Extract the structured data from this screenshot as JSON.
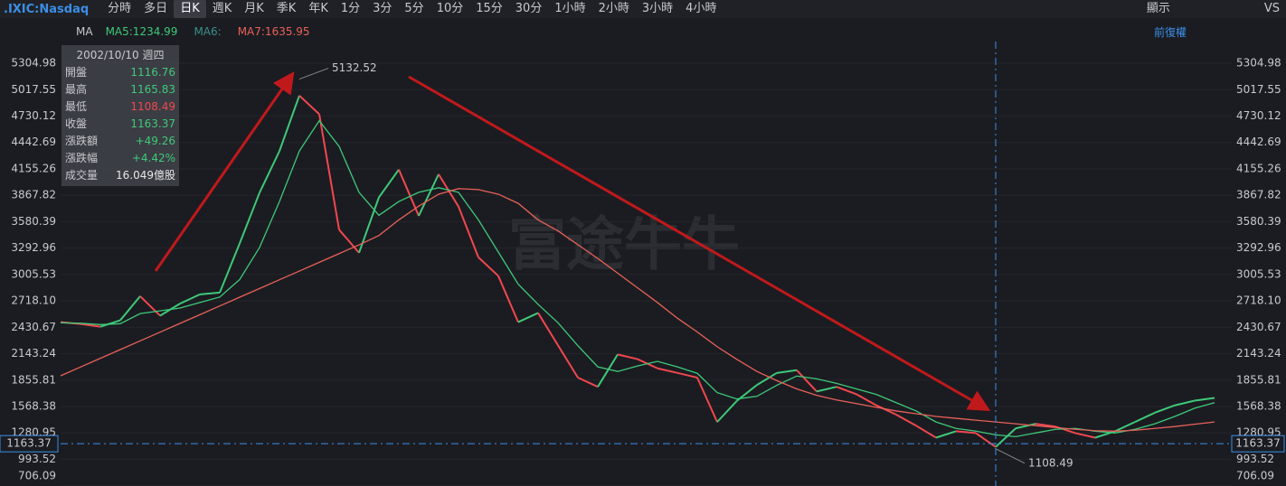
{
  "toolbar": {
    "symbol": ".IXIC:Nasdaq",
    "tabs": [
      "分時",
      "多日",
      "日K",
      "週K",
      "月K",
      "季K",
      "年K",
      "1分",
      "3分",
      "5分",
      "10分",
      "15分",
      "30分",
      "1小時",
      "2小時",
      "3小時",
      "4小時"
    ],
    "selected": 2,
    "display": "顯示",
    "vs": "VS"
  },
  "indicator_bar": {
    "indicator": "MA",
    "legends": [
      {
        "text": "MA5:1234.99",
        "color": "#3ec97a"
      },
      {
        "text": "MA6:",
        "color": "#3a8f8c"
      },
      {
        "text": "MA7:1635.95",
        "color": "#e8615a"
      }
    ],
    "adjust": "前復權"
  },
  "tooltip": {
    "date": "2002/10/10 週四",
    "rows": [
      {
        "label": "開盤",
        "value": "1116.76",
        "color": "#3ec97a"
      },
      {
        "label": "最高",
        "value": "1165.83",
        "color": "#3ec97a"
      },
      {
        "label": "最低",
        "value": "1108.49",
        "color": "#f0474f"
      },
      {
        "label": "收盤",
        "value": "1163.37",
        "color": "#3ec97a"
      },
      {
        "label": "漲跌額",
        "value": "+49.26",
        "color": "#3ec97a"
      },
      {
        "label": "漲跌幅",
        "value": "+4.42%",
        "color": "#3ec97a"
      },
      {
        "label": "成交量",
        "value": "16.049億股",
        "color": "#e6e6e6"
      }
    ]
  },
  "watermark": "富途牛牛",
  "chart_data": {
    "type": "line",
    "ylim": [
      703,
      5443
    ],
    "yticks": [
      5304.98,
      5017.55,
      4730.12,
      4442.69,
      4155.26,
      3867.82,
      3580.39,
      3292.96,
      3005.53,
      {
        "value": 2718.1,
        "label": "2718.10"
      },
      2430.67,
      2143.24,
      1855.81,
      1568.38,
      1280.95,
      993.52,
      706.09
    ],
    "grid": true,
    "series": [
      {
        "color": "#c9cbd1",
        "up_color": "#3ec97a",
        "down_color": "#f0474f",
        "values": [
          2487,
          2467,
          2437,
          2507,
          2769,
          2557,
          2688,
          2789,
          2809,
          3343,
          3896,
          4349,
          4953,
          4751,
          3493,
          3242,
          3846,
          4148,
          3644,
          4097,
          3745,
          3192,
          2990,
          2487,
          2587,
          2235,
          1883,
          1783,
          2135,
          2084,
          1984,
          1934,
          1883,
          1400,
          1632,
          1803,
          1934,
          1964,
          1732,
          1783,
          1702,
          1581,
          1480,
          1360,
          1229,
          1299,
          1279,
          1128,
          1330,
          1380,
          1350,
          1279,
          1229,
          1299,
          1400,
          1501,
          1581,
          1632,
          1662
        ]
      },
      {
        "color": "#3ec97a",
        "values": [
          2480,
          2475,
          2460,
          2470,
          2580,
          2610,
          2640,
          2700,
          2760,
          2950,
          3300,
          3800,
          4350,
          4680,
          4400,
          3900,
          3650,
          3800,
          3900,
          3950,
          3900,
          3600,
          3250,
          2900,
          2680,
          2480,
          2230,
          2000,
          1950,
          2010,
          2060,
          2000,
          1930,
          1720,
          1650,
          1680,
          1800,
          1900,
          1870,
          1820,
          1760,
          1700,
          1610,
          1520,
          1400,
          1330,
          1300,
          1260,
          1240,
          1280,
          1320,
          1330,
          1300,
          1280,
          1320,
          1380,
          1460,
          1550,
          1610
        ]
      },
      {
        "color": "#e8615a",
        "values": [
          1903,
          1998,
          2093,
          2188,
          2283,
          2378,
          2473,
          2568,
          2663,
          2758,
          2853,
          2948,
          3043,
          3138,
          3233,
          3328,
          3430,
          3600,
          3750,
          3880,
          3940,
          3930,
          3880,
          3780,
          3600,
          3480,
          3330,
          3180,
          3020,
          2860,
          2700,
          2530,
          2380,
          2220,
          2080,
          1950,
          1850,
          1760,
          1690,
          1640,
          1600,
          1560,
          1520,
          1490,
          1460,
          1440,
          1420,
          1400,
          1380,
          1360,
          1340,
          1320,
          1305,
          1300,
          1310,
          1330,
          1350,
          1375,
          1400
        ]
      }
    ],
    "high": {
      "value": 5132.52,
      "index": 12
    },
    "low": {
      "value": 1108.49,
      "index": 47
    },
    "current": {
      "value": 1163.37,
      "index": 47
    }
  }
}
